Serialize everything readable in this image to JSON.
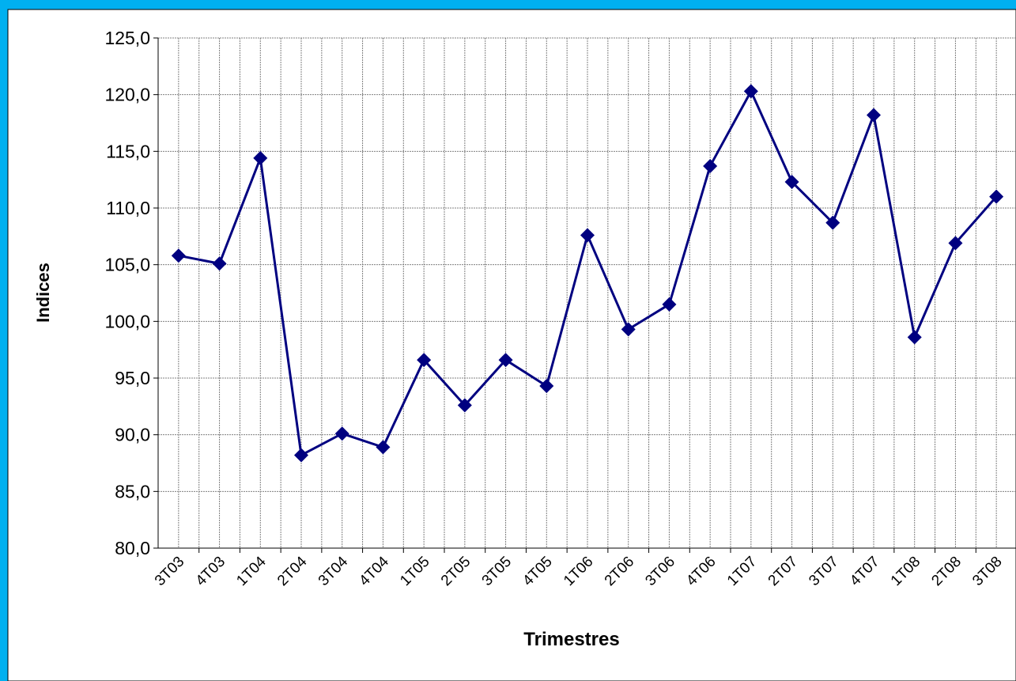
{
  "chart_data": {
    "type": "line",
    "y_label": "Indices",
    "x_label": "Trimestres",
    "categories": [
      "3T03",
      "4T03",
      "1T04",
      "2T04",
      "3T04",
      "4T04",
      "1T05",
      "2T05",
      "3T05",
      "4T05",
      "1T06",
      "2T06",
      "3T06",
      "4T06",
      "1T07",
      "2T07",
      "3T07",
      "4T07",
      "1T08",
      "2T08",
      "3T08"
    ],
    "series": [
      {
        "color": "#000080",
        "values": [
          105.8,
          105.1,
          114.4,
          88.2,
          90.1,
          88.9,
          96.6,
          92.6,
          96.6,
          94.3,
          107.6,
          99.3,
          101.5,
          113.7,
          120.3,
          112.3,
          108.7,
          118.2,
          98.6,
          106.9,
          111.0
        ]
      }
    ],
    "ylim": [
      80,
      125
    ],
    "yticks": [
      {
        "value": 80,
        "label": "80,0"
      },
      {
        "value": 85,
        "label": "85,0"
      },
      {
        "value": 90,
        "label": "90,0"
      },
      {
        "value": 95,
        "label": "95,0"
      },
      {
        "value": 100,
        "label": "100,0"
      },
      {
        "value": 105,
        "label": "105,0"
      },
      {
        "value": 110,
        "label": "110,0"
      },
      {
        "value": 115,
        "label": "115,0"
      },
      {
        "value": 120,
        "label": "120,0"
      },
      {
        "value": 125,
        "label": "125,0"
      }
    ],
    "grid": true
  }
}
